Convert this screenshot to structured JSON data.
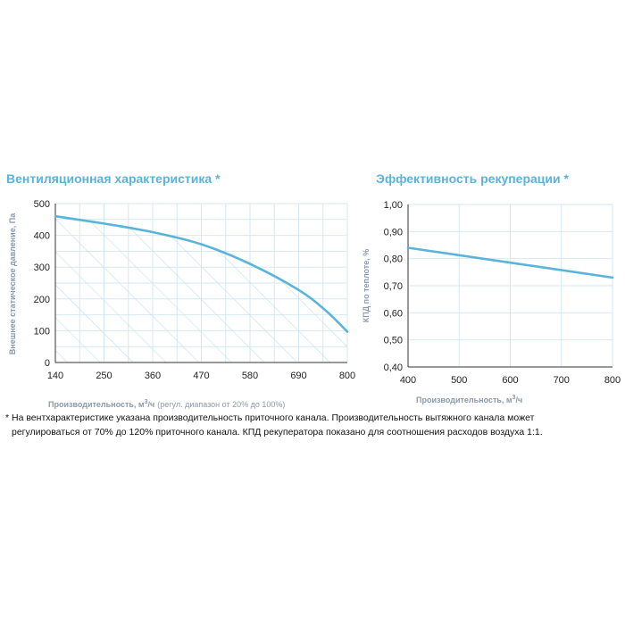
{
  "colors": {
    "accent": "#5ab4d9",
    "axis_title": "#8b9aab",
    "grid": "#d6e9f2",
    "hatch": "#c5e2ee"
  },
  "chart_data": [
    {
      "type": "area",
      "title": "Вентиляционная характеристика *",
      "ylabel": "Внешнее статическое давление, Па",
      "xlabel": {
        "main": "Производительность, м",
        "sup": "3",
        "unit": "/ч",
        "note": "(регул. диапазон от 20% до 100%)"
      },
      "x_ticks": [
        "140",
        "250",
        "360",
        "470",
        "580",
        "690",
        "800"
      ],
      "y_ticks": [
        "0",
        "100",
        "200",
        "300",
        "400",
        "500"
      ],
      "xlim": [
        140,
        800
      ],
      "ylim": [
        0,
        500
      ],
      "grid": true,
      "hatched_fill": true,
      "series": [
        {
          "name": "Вентиляционная характеристика",
          "x": [
            140,
            250,
            360,
            470,
            580,
            690,
            750,
            800
          ],
          "y": [
            460,
            437,
            410,
            372,
            310,
            228,
            165,
            97
          ]
        }
      ]
    },
    {
      "type": "line",
      "title": "Эффективность рекуперации *",
      "ylabel": "КПД по теплоте, %",
      "xlabel": {
        "main": "Производительность, м",
        "sup": "3",
        "unit": "/ч",
        "note": ""
      },
      "x_ticks": [
        "400",
        "500",
        "600",
        "700",
        "800"
      ],
      "y_ticks": [
        "0,40",
        "0,50",
        "0,60",
        "0,70",
        "0,80",
        "0,90",
        "1,00"
      ],
      "xlim": [
        400,
        800
      ],
      "ylim": [
        0.4,
        1.0
      ],
      "grid": true,
      "series": [
        {
          "name": "КПД рекуператора",
          "x": [
            400,
            800
          ],
          "y": [
            0.84,
            0.73
          ]
        }
      ]
    }
  ],
  "footnote": {
    "line1": "* На вентхарактеристике указана производительность приточного канала. Производительность вытяжного канала может",
    "line2": "регулироваться от 70% до 120% приточного канала. КПД рекуператора показано для соотношения расходов воздуха 1:1."
  }
}
